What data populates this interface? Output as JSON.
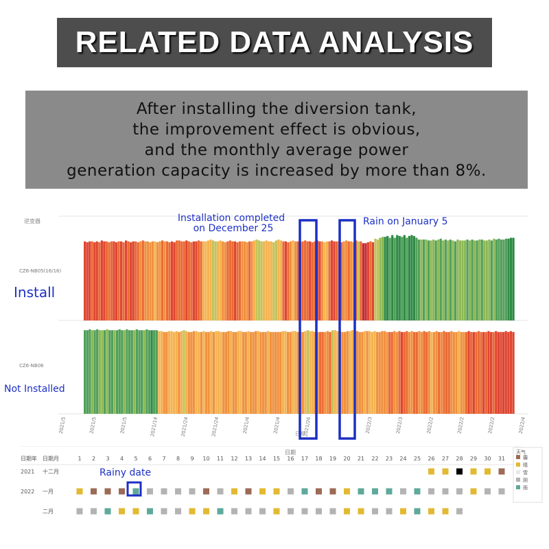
{
  "header": {
    "title": "RELATED DATA ANALYSIS",
    "subtitle_lines": [
      "After installing the diversion tank,",
      "the improvement effect is obvious,",
      "and the monthly average power",
      "generation capacity is increased by more than 8%."
    ]
  },
  "chart_data": {
    "type": "bar",
    "title": "",
    "top_left_label": "逆变器",
    "series": [
      {
        "name": "CZ6-NB05(16/16)",
        "callout": "Install"
      },
      {
        "name": "CZ6-NB06",
        "callout": "Not Installed"
      }
    ],
    "x_tick_labels": [
      "2021/5",
      "2021/5",
      "2021/5",
      "2021/14",
      "2021/24",
      "2021/24",
      "2021/4",
      "2021/4",
      "2021/26",
      "",
      "2022/3",
      "2022/3",
      "2022/2",
      "2022/2",
      "2022/2",
      "2022/4"
    ],
    "x_axis_label": "日期",
    "annotations": [
      {
        "text_lines": [
          "Installation completed",
          "on December 25"
        ]
      },
      {
        "text": "Rain on January 5"
      }
    ],
    "color_scale": [
      "#c62a32",
      "#de4631",
      "#ea6a35",
      "#f0913f",
      "#f4b350",
      "#c3c35a",
      "#8eb855",
      "#52a05a",
      "#2f8a46"
    ],
    "top_colors": [
      1,
      1,
      1,
      2,
      1,
      1,
      2,
      1,
      1,
      2,
      2,
      2,
      1,
      1,
      2,
      1,
      2,
      1,
      2,
      1,
      1,
      2,
      2,
      3,
      2,
      3,
      3,
      3,
      3,
      4,
      3,
      3,
      2,
      3,
      2,
      2,
      1,
      1,
      2,
      2,
      2,
      2,
      1,
      2,
      2,
      1,
      1,
      2,
      2,
      4,
      4,
      4,
      4,
      5,
      5,
      4,
      4,
      3,
      3,
      2,
      2,
      2,
      1,
      2,
      2,
      3,
      3,
      3,
      2,
      3,
      4,
      5,
      5,
      5,
      4,
      4,
      4,
      4,
      5,
      5,
      4,
      4,
      2,
      1,
      2,
      3,
      4,
      3,
      2,
      2,
      2,
      2,
      2,
      1,
      2,
      2,
      1,
      1,
      3,
      4,
      4,
      2,
      1,
      1,
      2,
      2,
      2,
      3,
      3,
      2,
      3,
      3,
      2,
      5,
      2,
      0,
      0,
      1,
      2,
      1,
      5,
      5,
      6,
      6,
      8,
      8,
      7,
      8,
      7,
      8,
      8,
      7,
      8,
      7,
      8,
      8,
      8,
      7,
      7,
      6,
      7,
      6,
      7,
      6,
      6,
      7,
      6,
      7,
      6,
      7,
      6,
      7,
      6,
      7,
      6,
      6,
      6,
      6,
      7,
      6,
      7,
      6,
      7,
      6,
      7,
      6,
      6,
      6,
      7,
      6,
      7,
      7,
      7,
      7,
      7,
      8,
      8,
      8
    ],
    "top_values": [
      0.88,
      0.87,
      0.88,
      0.88,
      0.87,
      0.88,
      0.87,
      0.89,
      0.88,
      0.88,
      0.87,
      0.88,
      0.88,
      0.87,
      0.88,
      0.88,
      0.87,
      0.89,
      0.88,
      0.87,
      0.88,
      0.88,
      0.87,
      0.88,
      0.89,
      0.88,
      0.88,
      0.87,
      0.88,
      0.88,
      0.87,
      0.88,
      0.89,
      0.88,
      0.88,
      0.87,
      0.88,
      0.87,
      0.89,
      0.89,
      0.88,
      0.88,
      0.89,
      0.88,
      0.87,
      0.88,
      0.88,
      0.89,
      0.88,
      0.88,
      0.88,
      0.89,
      0.9,
      0.89,
      0.88,
      0.88,
      0.89,
      0.88,
      0.87,
      0.88,
      0.89,
      0.88,
      0.88,
      0.87,
      0.88,
      0.88,
      0.88,
      0.87,
      0.88,
      0.88,
      0.89,
      0.9,
      0.89,
      0.88,
      0.88,
      0.89,
      0.88,
      0.88,
      0.87,
      0.89,
      0.9,
      0.89,
      0.88,
      0.88,
      0.87,
      0.88,
      0.89,
      0.88,
      0.88,
      0.87,
      0.88,
      0.89,
      0.88,
      0.88,
      0.87,
      0.88,
      0.89,
      0.88,
      0.88,
      0.87,
      0.88,
      0.88,
      0.89,
      0.88,
      0.88,
      0.88,
      0.87,
      0.88,
      0.89,
      0.88,
      0.88,
      0.87,
      0.89,
      0.88,
      0.88,
      0.86,
      0.86,
      0.87,
      0.88,
      0.87,
      0.91,
      0.9,
      0.92,
      0.93,
      0.93,
      0.94,
      0.92,
      0.95,
      0.92,
      0.95,
      0.94,
      0.93,
      0.95,
      0.92,
      0.94,
      0.95,
      0.94,
      0.92,
      0.9,
      0.9,
      0.9,
      0.9,
      0.89,
      0.89,
      0.9,
      0.89,
      0.9,
      0.91,
      0.89,
      0.9,
      0.89,
      0.9,
      0.89,
      0.88,
      0.9,
      0.89,
      0.89,
      0.89,
      0.9,
      0.89,
      0.9,
      0.89,
      0.89,
      0.9,
      0.9,
      0.89,
      0.89,
      0.9,
      0.89,
      0.91,
      0.9,
      0.91,
      0.9,
      0.9,
      0.91,
      0.91,
      0.92,
      0.92
    ],
    "bottom_colors": [
      7,
      7,
      7,
      6,
      7,
      7,
      6,
      6,
      7,
      6,
      7,
      7,
      6,
      7,
      7,
      7,
      6,
      7,
      7,
      7,
      6,
      7,
      7,
      7,
      6,
      7,
      7,
      8,
      7,
      7,
      4,
      4,
      3,
      3,
      4,
      4,
      4,
      4,
      3,
      4,
      5,
      4,
      3,
      3,
      3,
      4,
      4,
      3,
      4,
      3,
      3,
      4,
      3,
      4,
      4,
      4,
      3,
      3,
      3,
      4,
      3,
      3,
      4,
      4,
      3,
      3,
      4,
      3,
      3,
      3,
      4,
      3,
      3,
      3,
      4,
      3,
      3,
      3,
      3,
      3,
      4,
      4,
      3,
      3,
      4,
      4,
      3,
      3,
      3,
      4,
      5,
      4,
      4,
      3,
      3,
      2,
      2,
      3,
      3,
      2,
      5,
      4,
      4,
      3,
      3,
      3,
      3,
      4,
      4,
      3,
      3,
      3,
      3,
      4,
      3,
      4,
      4,
      4,
      3,
      3,
      3,
      3,
      3,
      2,
      2,
      3,
      3,
      2,
      1,
      2,
      2,
      3,
      3,
      2,
      2,
      3,
      3,
      2,
      2,
      3,
      4,
      3,
      3,
      2,
      3,
      2,
      2,
      2,
      3,
      3,
      3,
      4,
      3,
      3,
      2,
      1,
      2,
      1,
      2,
      2,
      2,
      1,
      2,
      1,
      1,
      2,
      1,
      1,
      1,
      1,
      1,
      1,
      1,
      1,
      1,
      0,
      0,
      0
    ],
    "bottom_values": [
      0.93,
      0.93,
      0.94,
      0.93,
      0.93,
      0.94,
      0.93,
      0.93,
      0.93,
      0.94,
      0.93,
      0.93,
      0.93,
      0.93,
      0.94,
      0.93,
      0.93,
      0.94,
      0.93,
      0.93,
      0.93,
      0.94,
      0.93,
      0.93,
      0.93,
      0.94,
      0.93,
      0.93,
      0.93,
      0.93,
      0.92,
      0.92,
      0.91,
      0.91,
      0.92,
      0.92,
      0.91,
      0.92,
      0.91,
      0.92,
      0.93,
      0.92,
      0.91,
      0.91,
      0.92,
      0.92,
      0.91,
      0.91,
      0.92,
      0.91,
      0.91,
      0.92,
      0.91,
      0.92,
      0.92,
      0.91,
      0.91,
      0.91,
      0.92,
      0.92,
      0.91,
      0.91,
      0.92,
      0.92,
      0.91,
      0.91,
      0.92,
      0.91,
      0.91,
      0.92,
      0.92,
      0.91,
      0.91,
      0.91,
      0.92,
      0.91,
      0.91,
      0.91,
      0.91,
      0.91,
      0.92,
      0.92,
      0.91,
      0.91,
      0.92,
      0.92,
      0.91,
      0.91,
      0.91,
      0.92,
      0.93,
      0.92,
      0.92,
      0.91,
      0.91,
      0.91,
      0.91,
      0.91,
      0.92,
      0.91,
      0.93,
      0.93,
      0.92,
      0.92,
      0.91,
      0.91,
      0.92,
      0.92,
      0.93,
      0.92,
      0.92,
      0.91,
      0.91,
      0.92,
      0.92,
      0.92,
      0.91,
      0.92,
      0.91,
      0.91,
      0.92,
      0.92,
      0.91,
      0.91,
      0.91,
      0.92,
      0.91,
      0.92,
      0.91,
      0.91,
      0.92,
      0.91,
      0.92,
      0.91,
      0.91,
      0.92,
      0.91,
      0.92,
      0.91,
      0.92,
      0.91,
      0.91,
      0.92,
      0.91,
      0.91,
      0.92,
      0.91,
      0.91,
      0.92,
      0.91,
      0.91,
      0.92,
      0.91,
      0.91,
      0.91,
      0.92,
      0.91,
      0.91,
      0.91,
      0.92,
      0.91,
      0.91,
      0.91,
      0.92,
      0.91,
      0.91,
      0.92,
      0.91,
      0.91,
      0.91,
      0.92,
      0.91,
      0.92,
      0.91
    ]
  },
  "calendar": {
    "top_header": "日期",
    "header_year": "日期年",
    "header_month": "日期月",
    "days": [
      "1",
      "2",
      "3",
      "4",
      "5",
      "6",
      "7",
      "8",
      "9",
      "10",
      "11",
      "12",
      "13",
      "14",
      "15",
      "16",
      "17",
      "18",
      "19",
      "20",
      "21",
      "22",
      "23",
      "24",
      "25",
      "26",
      "27",
      "28",
      "29",
      "30",
      "31"
    ],
    "rows": [
      {
        "year": "2021",
        "month": "十二月",
        "cells": [
          null,
          null,
          null,
          null,
          null,
          null,
          null,
          null,
          null,
          null,
          null,
          null,
          null,
          null,
          null,
          null,
          null,
          null,
          null,
          null,
          null,
          null,
          null,
          null,
          null,
          "sunny",
          "sunny",
          "cloudy",
          "sunny",
          "sunny",
          "fog"
        ]
      },
      {
        "year": "2022",
        "month": "一月",
        "cells": [
          "sunny",
          "fog",
          "fog",
          "fog",
          "rain",
          "overcast",
          "overcast",
          "overcast",
          "overcast",
          "fog",
          "overcast",
          "sunny",
          "fog",
          "sunny",
          "sunny",
          "overcast",
          "rain",
          "fog",
          "fog",
          "sunny",
          "rain",
          "rain",
          "rain",
          "overcast",
          "rain",
          "overcast",
          "overcast",
          "overcast",
          "sunny",
          "overcast",
          "overcast"
        ]
      },
      {
        "year": "",
        "month": "二月",
        "cells": [
          "overcast",
          "overcast",
          "rain",
          "sunny",
          "sunny",
          "rain",
          "overcast",
          "overcast",
          "sunny",
          "sunny",
          "rain",
          "overcast",
          "overcast",
          "overcast",
          "sunny",
          "overcast",
          "overcast",
          "overcast",
          "overcast",
          "sunny",
          "sunny",
          "overcast",
          "overcast",
          "sunny",
          "rain",
          "sunny",
          "sunny",
          "overcast",
          null,
          null,
          null
        ]
      }
    ],
    "legend_title": "天气",
    "legend": [
      {
        "key": "fog",
        "label": "霾",
        "color": "#9c6a55"
      },
      {
        "key": "sunny",
        "label": "晴",
        "color": "#e2b932"
      },
      {
        "key": "snow",
        "label": "雪",
        "color": "#e9e9e9"
      },
      {
        "key": "overcast",
        "label": "阴",
        "color": "#b3b3b3"
      },
      {
        "key": "rain",
        "label": "雨",
        "color": "#5ea99b"
      }
    ],
    "callout": "Rainy date"
  }
}
